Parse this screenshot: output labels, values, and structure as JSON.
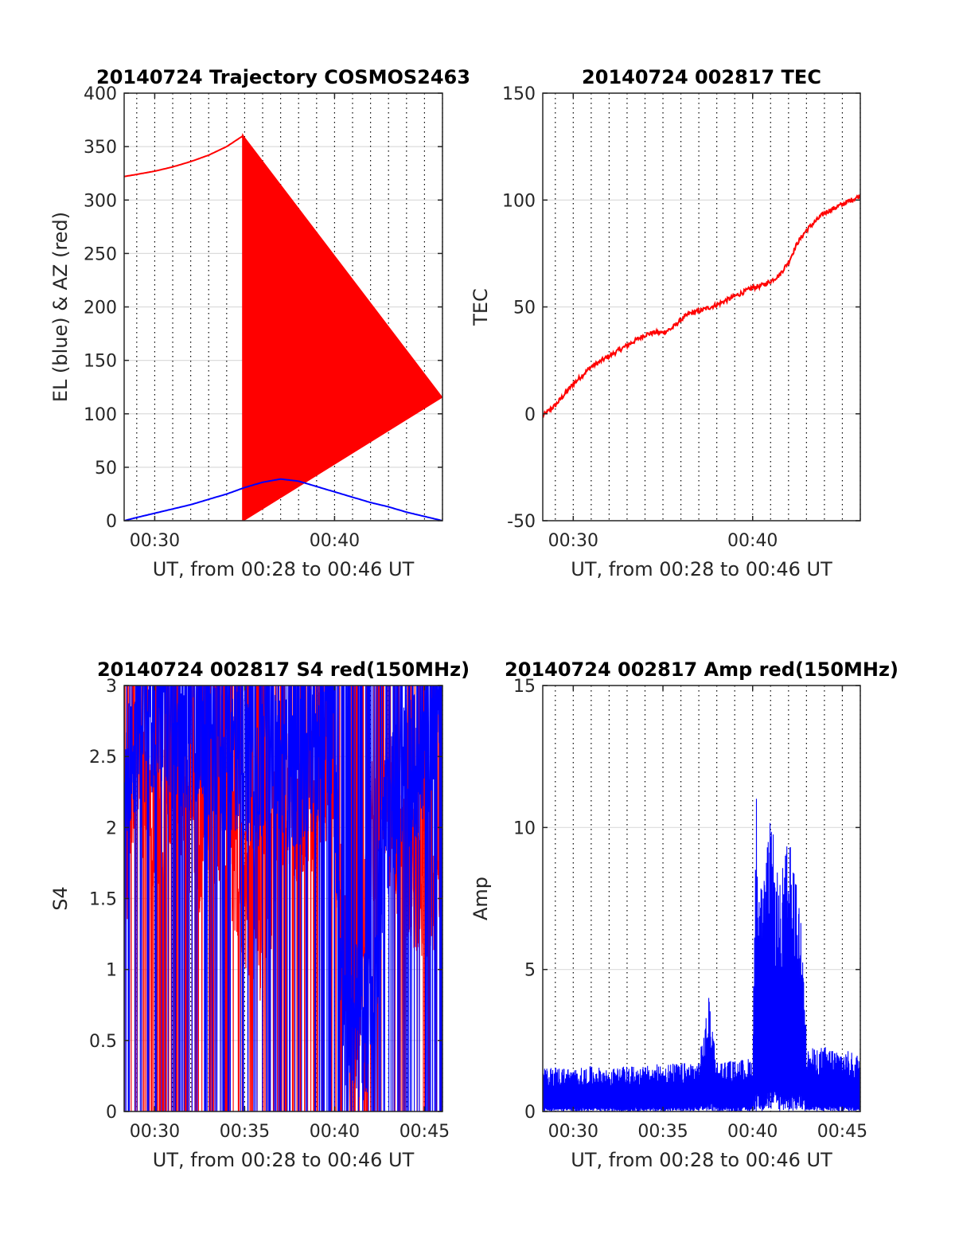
{
  "colors": {
    "red": "#ff0000",
    "blue": "#0000ff",
    "axis": "#262626",
    "grid": "#dcdcdc"
  },
  "chart_data": [
    {
      "id": "traj",
      "type": "line",
      "title": "20140724 Trajectory COSMOS2463",
      "xlabel": "UT, from 00:28 to 00:46 UT",
      "ylabel": "EL (blue) & AZ (red)",
      "xlim": [
        28.3,
        46
      ],
      "ylim": [
        0,
        400
      ],
      "yticks": [
        0,
        50,
        100,
        150,
        200,
        250,
        300,
        350,
        400
      ],
      "xticks": [
        30,
        40
      ],
      "xtick_labels": [
        "00:30",
        "00:40"
      ],
      "grid": "dotted vertical every minute, light horizontal at y ticks",
      "series": [
        {
          "color": "red",
          "x": [
            28.3,
            29,
            30,
            31,
            32,
            33,
            34,
            34.9,
            34.9,
            35.2,
            35.5,
            36,
            36.5,
            37,
            37.5,
            38,
            38.5,
            39,
            39.5,
            40,
            40.5,
            41,
            42,
            43,
            44,
            45,
            46
          ],
          "y": [
            322,
            324,
            327,
            331,
            336,
            342,
            350,
            360,
            0,
            5,
            10,
            19,
            28,
            38,
            48,
            57,
            66,
            74,
            81,
            87,
            92,
            96,
            102,
            107,
            111,
            114,
            116
          ]
        },
        {
          "color": "blue",
          "x": [
            28.3,
            29,
            30,
            31,
            32,
            33,
            34,
            35,
            36,
            37,
            38,
            39,
            40,
            41,
            42,
            43,
            44,
            45,
            46
          ],
          "y": [
            0,
            3,
            7,
            11,
            15,
            20,
            25,
            31,
            36,
            39,
            37,
            32,
            27,
            22,
            17,
            13,
            8,
            4,
            0
          ]
        }
      ]
    },
    {
      "id": "tec",
      "type": "line",
      "title": "20140724 002817 TEC",
      "xlabel": "UT, from 00:28 to 00:46 UT",
      "ylabel": "TEC",
      "xlim": [
        28.3,
        46
      ],
      "ylim": [
        -50,
        150
      ],
      "yticks": [
        -50,
        0,
        50,
        100,
        150
      ],
      "xticks": [
        30,
        40
      ],
      "xtick_labels": [
        "00:30",
        "00:40"
      ],
      "grid": "dotted vertical every minute, light horizontal at y ticks",
      "series": [
        {
          "color": "red",
          "x": [
            28.3,
            29,
            30,
            31,
            32,
            33,
            34,
            34.5,
            35,
            35.5,
            36,
            36.5,
            37,
            38,
            39,
            40,
            40.5,
            41,
            41.5,
            42,
            42.5,
            43,
            43.5,
            44,
            44.5,
            45,
            45.5,
            46
          ],
          "y": [
            -1,
            4,
            14,
            22,
            27,
            32,
            37,
            38,
            38,
            40,
            44,
            47,
            48,
            51,
            55,
            59,
            60,
            62,
            65,
            71,
            80,
            86,
            90,
            94,
            96,
            98,
            100,
            102
          ]
        }
      ]
    },
    {
      "id": "s4",
      "type": "line",
      "title": "20140724 002817 S4 red(150MHz)",
      "xlabel": "UT, from 00:28 to 00:46 UT",
      "ylabel": "S4",
      "xlim": [
        28.3,
        46
      ],
      "ylim": [
        0,
        3
      ],
      "yticks": [
        0,
        0.5,
        1,
        1.5,
        2,
        2.5,
        3
      ],
      "xticks": [
        30,
        35,
        40,
        45
      ],
      "xtick_labels": [
        "00:30",
        "00:35",
        "00:40",
        "00:45"
      ],
      "grid": "dotted vertical every minute, light horizontal at y ticks",
      "series": [
        {
          "color": "red",
          "style": "dense noisy spikes",
          "x": [
            28.3,
            29,
            29.8,
            30.7,
            31.5,
            32.3,
            33.1,
            33.8,
            34.5,
            35.2,
            35.8,
            36.3,
            36.9,
            37.6,
            38.3,
            39.1,
            39.9,
            40.5,
            41.2,
            42,
            42.8,
            43.6,
            44.3,
            45,
            45.6,
            46
          ],
          "y": [
            1.7,
            2.4,
            2.0,
            2.2,
            2.3,
            1.9,
            2.1,
            2.2,
            1.7,
            1.5,
            1.3,
            1.5,
            2.1,
            2.2,
            2.0,
            2.4,
            2.5,
            1.3,
            0.7,
            1.9,
            2.3,
            1.8,
            1.7,
            1.6,
            1.6,
            1.5
          ]
        },
        {
          "color": "blue",
          "style": "dense noisy spikes",
          "x": [
            28.3,
            29,
            29.8,
            30.7,
            31.5,
            32.3,
            33.1,
            33.8,
            34.5,
            35.2,
            35.8,
            36.3,
            36.9,
            37.6,
            38.3,
            39.1,
            39.9,
            40.5,
            41.2,
            42,
            42.8,
            43.6,
            44.3,
            45,
            45.6,
            46
          ],
          "y": [
            2.4,
            2.6,
            2.8,
            2.7,
            2.5,
            2.7,
            2.6,
            2.5,
            2.5,
            2.4,
            2.4,
            2.5,
            2.4,
            2.4,
            2.4,
            2.6,
            2.7,
            0.7,
            0.65,
            0.6,
            2.0,
            2.3,
            2.4,
            2.6,
            2.6,
            2.6
          ]
        }
      ]
    },
    {
      "id": "amp",
      "type": "line",
      "title": "20140724 002817 Amp red(150MHz)",
      "xlabel": "UT, from 00:28 to 00:46 UT",
      "ylabel": "Amp",
      "xlim": [
        28.3,
        46
      ],
      "ylim": [
        0,
        15
      ],
      "yticks": [
        0,
        5,
        10,
        15
      ],
      "xticks": [
        30,
        35,
        40,
        45
      ],
      "xtick_labels": [
        "00:30",
        "00:35",
        "00:40",
        "00:45"
      ],
      "grid": "dotted vertical every minute, light horizontal at y ticks",
      "series": [
        {
          "color": "blue",
          "style": "dense noisy spikes from zero",
          "x": [
            28.3,
            29,
            30,
            31,
            32,
            33,
            34,
            35,
            36,
            37,
            37.6,
            38,
            39,
            40,
            40.2,
            40.4,
            40.6,
            41,
            41.5,
            42,
            42.5,
            42.8,
            43,
            44,
            45,
            46
          ],
          "y": [
            1.5,
            1.6,
            1.5,
            1.6,
            1.5,
            1.6,
            1.6,
            1.7,
            1.7,
            1.8,
            4.2,
            1.8,
            1.8,
            1.9,
            11.5,
            8.5,
            8.0,
            10.5,
            8.0,
            9.8,
            7.8,
            7.5,
            2.2,
            2.3,
            2.2,
            2.0
          ]
        }
      ]
    }
  ]
}
